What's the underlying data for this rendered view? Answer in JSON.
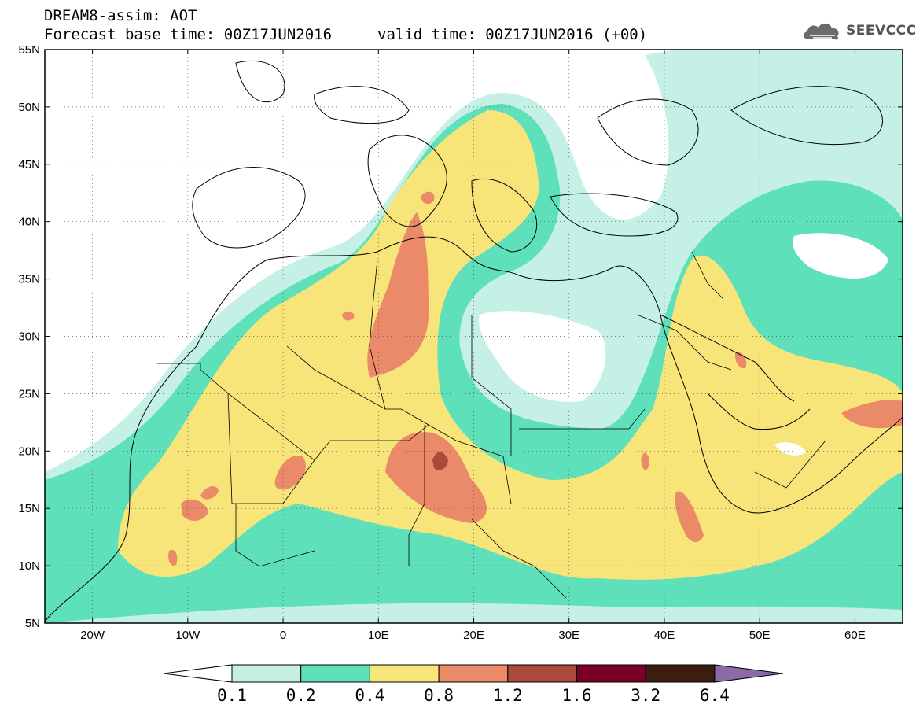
{
  "header": {
    "title_line1": "DREAM8-assim: AOT",
    "title_line2": "Forecast base time: 00Z17JUN2016",
    "valid_time": "valid time: 00Z17JUN2016 (+00)",
    "logo_text": "SEEVCCC",
    "logo_icon": "cloud-icon"
  },
  "map": {
    "region": {
      "lon_range": [
        -25,
        65
      ],
      "lat_range": [
        5,
        55
      ]
    },
    "lat_labels": [
      "5N",
      "10N",
      "15N",
      "20N",
      "25N",
      "30N",
      "35N",
      "40N",
      "45N",
      "50N",
      "55N"
    ],
    "lon_labels": [
      "20W",
      "10W",
      "0",
      "10E",
      "20E",
      "30E",
      "40E",
      "50E",
      "60E"
    ],
    "lat_values": [
      5,
      10,
      15,
      20,
      25,
      30,
      35,
      40,
      45,
      50,
      55
    ],
    "lon_values": [
      -20,
      -10,
      0,
      10,
      20,
      30,
      40,
      50,
      60
    ]
  },
  "colorbar": {
    "labels": [
      "0.1",
      "0.2",
      "0.4",
      "0.8",
      "1.2",
      "1.6",
      "3.2",
      "6.4"
    ],
    "colors": [
      "#ffffff",
      "#c4f0e6",
      "#5ee0ba",
      "#f7e57a",
      "#ea8a68",
      "#a94a3c",
      "#7a0024",
      "#3b1e10",
      "#8a6aa8"
    ]
  }
}
